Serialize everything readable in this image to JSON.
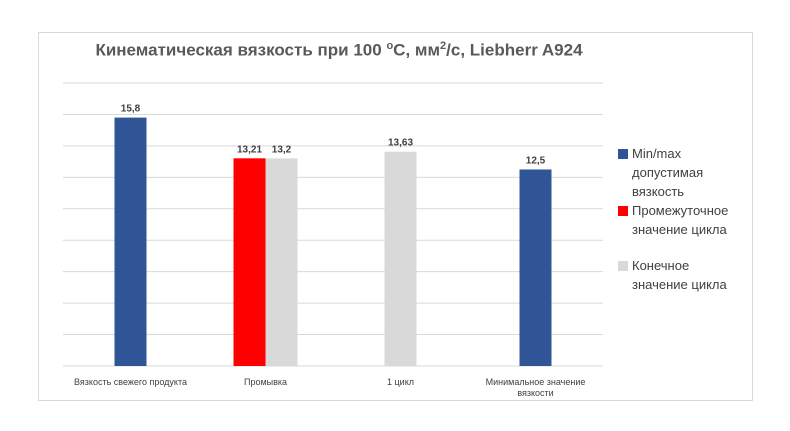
{
  "chart_data": {
    "type": "bar",
    "title_main": "Кинематическая вязкость при 100 ",
    "title_deg": "о",
    "title_c": "С, мм",
    "title_sq": "2",
    "title_end": "/с, Liebherr A924",
    "categories": [
      [
        "Вязкость свежего продукта"
      ],
      [
        "Промывка"
      ],
      [
        "1 цикл"
      ],
      [
        "Минимальное значение",
        "вязкости"
      ]
    ],
    "series": [
      {
        "name": "Min/max допустимая вязкость",
        "color": "#2f5597",
        "values": [
          15.8,
          null,
          null,
          12.5
        ]
      },
      {
        "name": "Промежуточное значение цикла",
        "color": "#ff0000",
        "values": [
          null,
          13.21,
          null,
          null
        ]
      },
      {
        "name": "Конечное значение цикла",
        "color": "#d9d9d9",
        "values": [
          null,
          13.2,
          13.63,
          null
        ]
      }
    ],
    "value_labels": [
      "15,8",
      "13,21",
      "13,2",
      "13,63",
      "12,5"
    ],
    "ylim": [
      0,
      18
    ],
    "gridlines": [
      0,
      2,
      4,
      6,
      8,
      10,
      12,
      14,
      16,
      18
    ],
    "grid": true,
    "legend_position": "right"
  },
  "legend": [
    {
      "lines": [
        "Min/max",
        "допустимая",
        "вязкость"
      ],
      "color": "#2f5597"
    },
    {
      "lines": [
        "Промежуточное",
        "значение цикла"
      ],
      "color": "#ff0000"
    },
    {
      "lines": [
        "Конечное",
        "значение цикла"
      ],
      "color": "#d9d9d9"
    }
  ]
}
